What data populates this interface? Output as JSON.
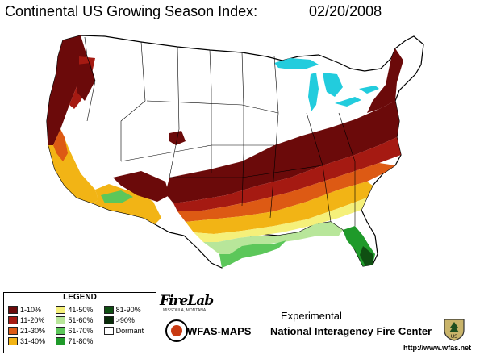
{
  "header": {
    "title": "Continental US Growing Season Index:",
    "date": "02/20/2008"
  },
  "legend": {
    "title": "LEGEND",
    "items": [
      {
        "label": "1-10%",
        "color": "#6b0a0a"
      },
      {
        "label": "41-50%",
        "color": "#f5f07a"
      },
      {
        "label": "81-90%",
        "color": "#0f4f12"
      },
      {
        "label": "11-20%",
        "color": "#a51a12"
      },
      {
        "label": "51-60%",
        "color": "#b8e69a"
      },
      {
        "label": ">90%",
        "color": "#0a2c0a"
      },
      {
        "label": "21-30%",
        "color": "#dd5a14"
      },
      {
        "label": "61-70%",
        "color": "#5cc75a"
      },
      {
        "label": "Dormant",
        "color": "#ffffff"
      },
      {
        "label": "31-40%",
        "color": "#f2b415"
      },
      {
        "label": "71-80%",
        "color": "#1f9a2a"
      }
    ]
  },
  "branding": {
    "firelab": "FireLab",
    "firelab_sub": "MISSOULA, MONTANA",
    "experimental": "Experimental",
    "wfas": "WFAS-MAPS",
    "nifc": "National Interagency Fire Center",
    "url": "http://www.wfas.net",
    "shield_text": "US"
  },
  "map": {
    "water_color": "#22ccdd",
    "border_color": "#000000"
  }
}
